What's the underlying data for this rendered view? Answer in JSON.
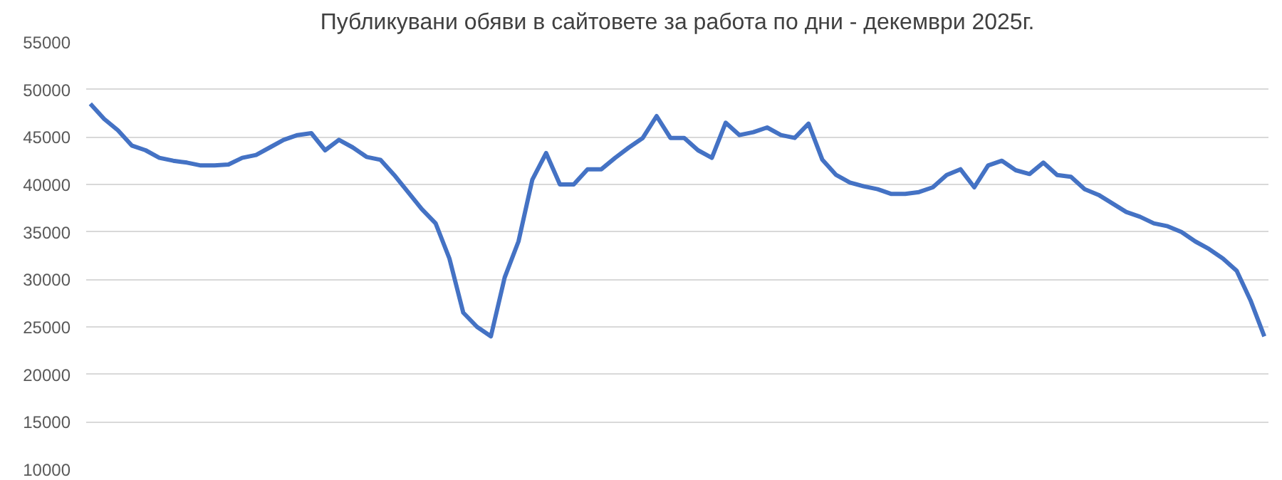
{
  "chart_data": {
    "type": "line",
    "title": "Публикувани обяви в сайтовете за работа по дни - декември 2025г.",
    "categories": [
      null,
      null,
      null,
      null,
      null,
      null,
      null,
      null,
      null,
      null,
      null,
      null,
      null,
      null,
      null,
      null,
      null,
      null,
      null,
      null,
      null,
      null,
      null,
      null,
      null,
      null,
      null,
      null,
      null,
      null,
      null,
      null,
      null,
      null,
      null,
      null,
      null,
      null,
      null,
      null,
      null,
      null,
      null,
      null,
      null,
      null,
      null,
      null,
      null,
      null,
      null,
      null,
      null,
      null,
      null,
      null,
      null,
      null,
      null,
      null,
      null,
      null,
      null,
      null,
      null,
      null,
      null,
      null,
      null,
      null,
      null,
      null,
      null,
      null,
      null,
      null,
      null,
      null,
      null,
      null,
      null,
      null,
      null,
      null,
      null,
      null
    ],
    "series": [
      {
        "color": "#4472c4",
        "values": [
          48500,
          46900,
          45700,
          44100,
          43600,
          42800,
          42500,
          42300,
          42000,
          42000,
          42100,
          42800,
          43100,
          43900,
          44700,
          45200,
          45400,
          43600,
          44700,
          43900,
          42900,
          42600,
          41000,
          39200,
          37400,
          35900,
          32200,
          26500,
          25000,
          24000,
          30200,
          34000,
          40500,
          43300,
          40000,
          40000,
          41600,
          41600,
          42800,
          43900,
          44900,
          47200,
          44900,
          44900,
          43600,
          42800,
          46500,
          45200,
          45500,
          46000,
          45200,
          44900,
          46400,
          42600,
          41000,
          40200,
          39800,
          39500,
          39000,
          39000,
          39200,
          39700,
          41000,
          41600,
          39700,
          42000,
          42500,
          41500,
          41100,
          42300,
          41000,
          40800,
          39500,
          38900,
          38000,
          37100,
          36600,
          35900,
          35600,
          35000,
          34000,
          33200,
          32200,
          30900,
          27800,
          24000
        ]
      }
    ],
    "ylim": [
      10000,
      55000
    ],
    "yticks": [
      10000,
      15000,
      20000,
      25000,
      30000,
      35000,
      40000,
      45000,
      50000,
      55000
    ],
    "grid": "y",
    "tick_labels": "y",
    "marker": "none",
    "line_style": "solid"
  }
}
